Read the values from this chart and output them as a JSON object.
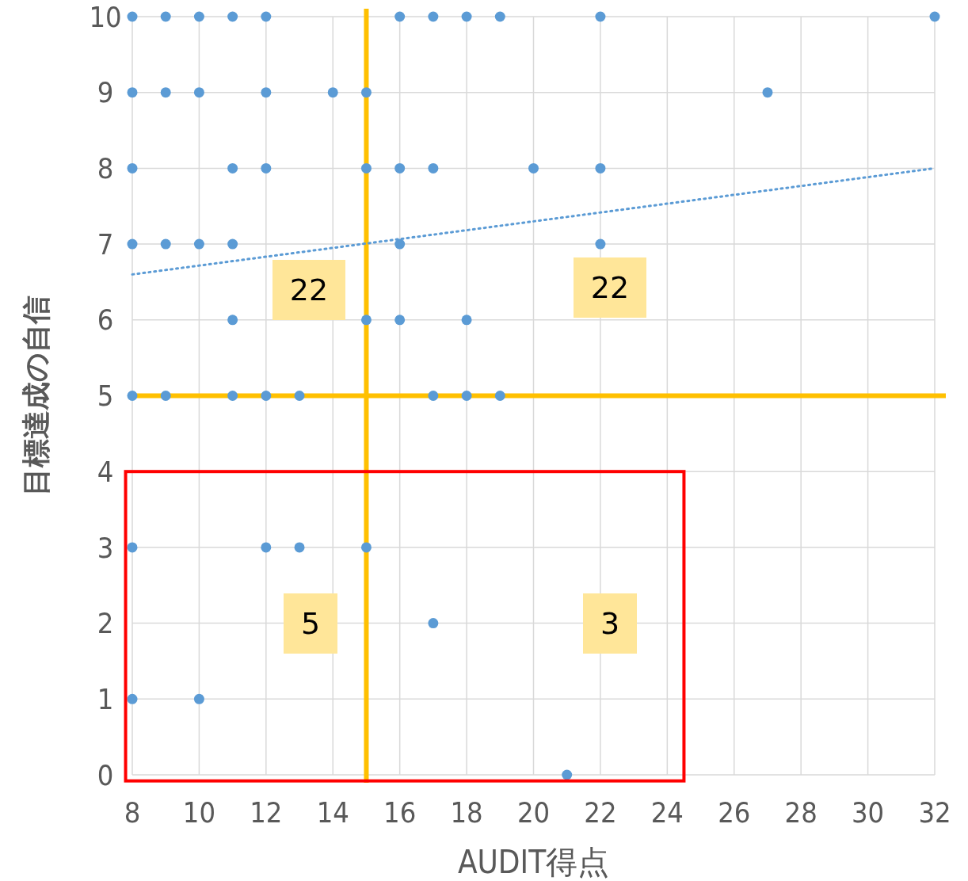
{
  "chart_data": {
    "type": "scatter",
    "xlabel": "AUDIT得点",
    "ylabel": "目標達成の自信",
    "xlim": [
      8,
      32
    ],
    "xticks": [
      8,
      10,
      12,
      14,
      16,
      18,
      20,
      22,
      24,
      26,
      28,
      30,
      32
    ],
    "ylim": [
      0,
      10
    ],
    "yticks": [
      0,
      1,
      2,
      3,
      4,
      5,
      6,
      7,
      8,
      9,
      10
    ],
    "grid": true,
    "marker": "circle",
    "series": [
      {
        "color": "#5b9bd5",
        "x": [
          8,
          9,
          10,
          11,
          12,
          16,
          17,
          18,
          19,
          22,
          32,
          8,
          9,
          10,
          12,
          14,
          15,
          27,
          8,
          11,
          12,
          15,
          16,
          17,
          20,
          22,
          8,
          9,
          10,
          11,
          16,
          22,
          11,
          15,
          16,
          18,
          8,
          9,
          11,
          12,
          13,
          17,
          18,
          19,
          8,
          12,
          13,
          15,
          17,
          8,
          10,
          21
        ],
        "values": [
          10,
          10,
          10,
          10,
          10,
          10,
          10,
          10,
          10,
          10,
          10,
          9,
          9,
          9,
          9,
          9,
          9,
          9,
          8,
          8,
          8,
          8,
          8,
          8,
          8,
          8,
          7,
          7,
          7,
          7,
          7,
          7,
          6,
          6,
          6,
          6,
          5,
          5,
          5,
          5,
          5,
          5,
          5,
          5,
          3,
          3,
          3,
          3,
          2,
          1,
          1,
          0
        ]
      },
      {
        "type": "line",
        "color": "#5b9bd5",
        "line_style": "dotted",
        "marker": "none",
        "x": [
          8,
          32
        ],
        "values": [
          6.6,
          8.0
        ]
      }
    ],
    "ref_lines": [
      {
        "axis": "x",
        "value": 15,
        "color": "#ffc000"
      },
      {
        "axis": "y",
        "value": 5,
        "color": "#ffc000"
      }
    ],
    "annotations": [
      "22",
      "22",
      "5",
      "3"
    ]
  }
}
